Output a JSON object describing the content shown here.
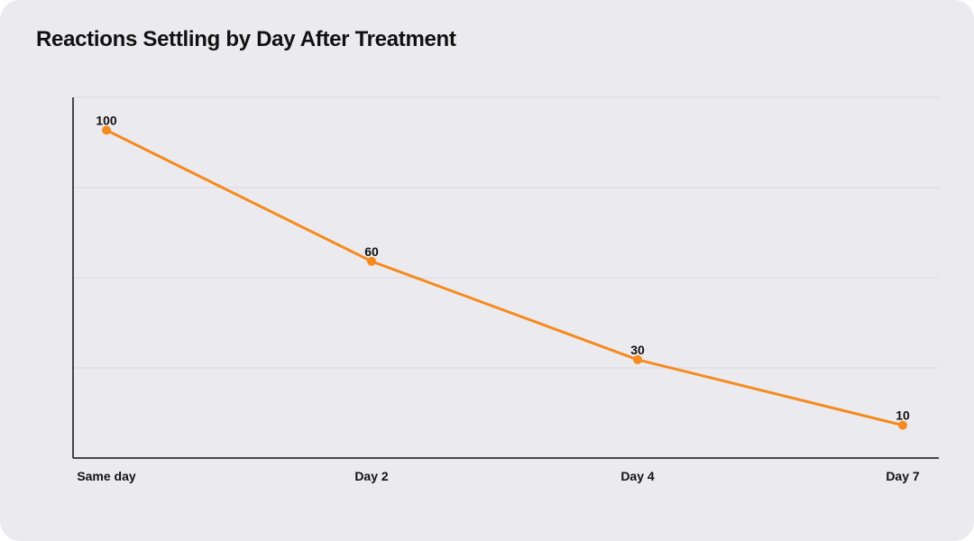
{
  "chart_data": {
    "type": "line",
    "title": "Reactions Settling by Day After Treatment",
    "xlabel": "",
    "ylabel": "",
    "categories": [
      "Same day",
      "Day 2",
      "Day 4",
      "Day 7"
    ],
    "series": [
      {
        "values": [
          100,
          60,
          30,
          10
        ]
      }
    ],
    "ylim": [
      0,
      110
    ],
    "grid": true,
    "legend": "none",
    "colors": {
      "line": "#f58a1f",
      "grid": "#d8d8de",
      "axis": "#111111"
    }
  }
}
